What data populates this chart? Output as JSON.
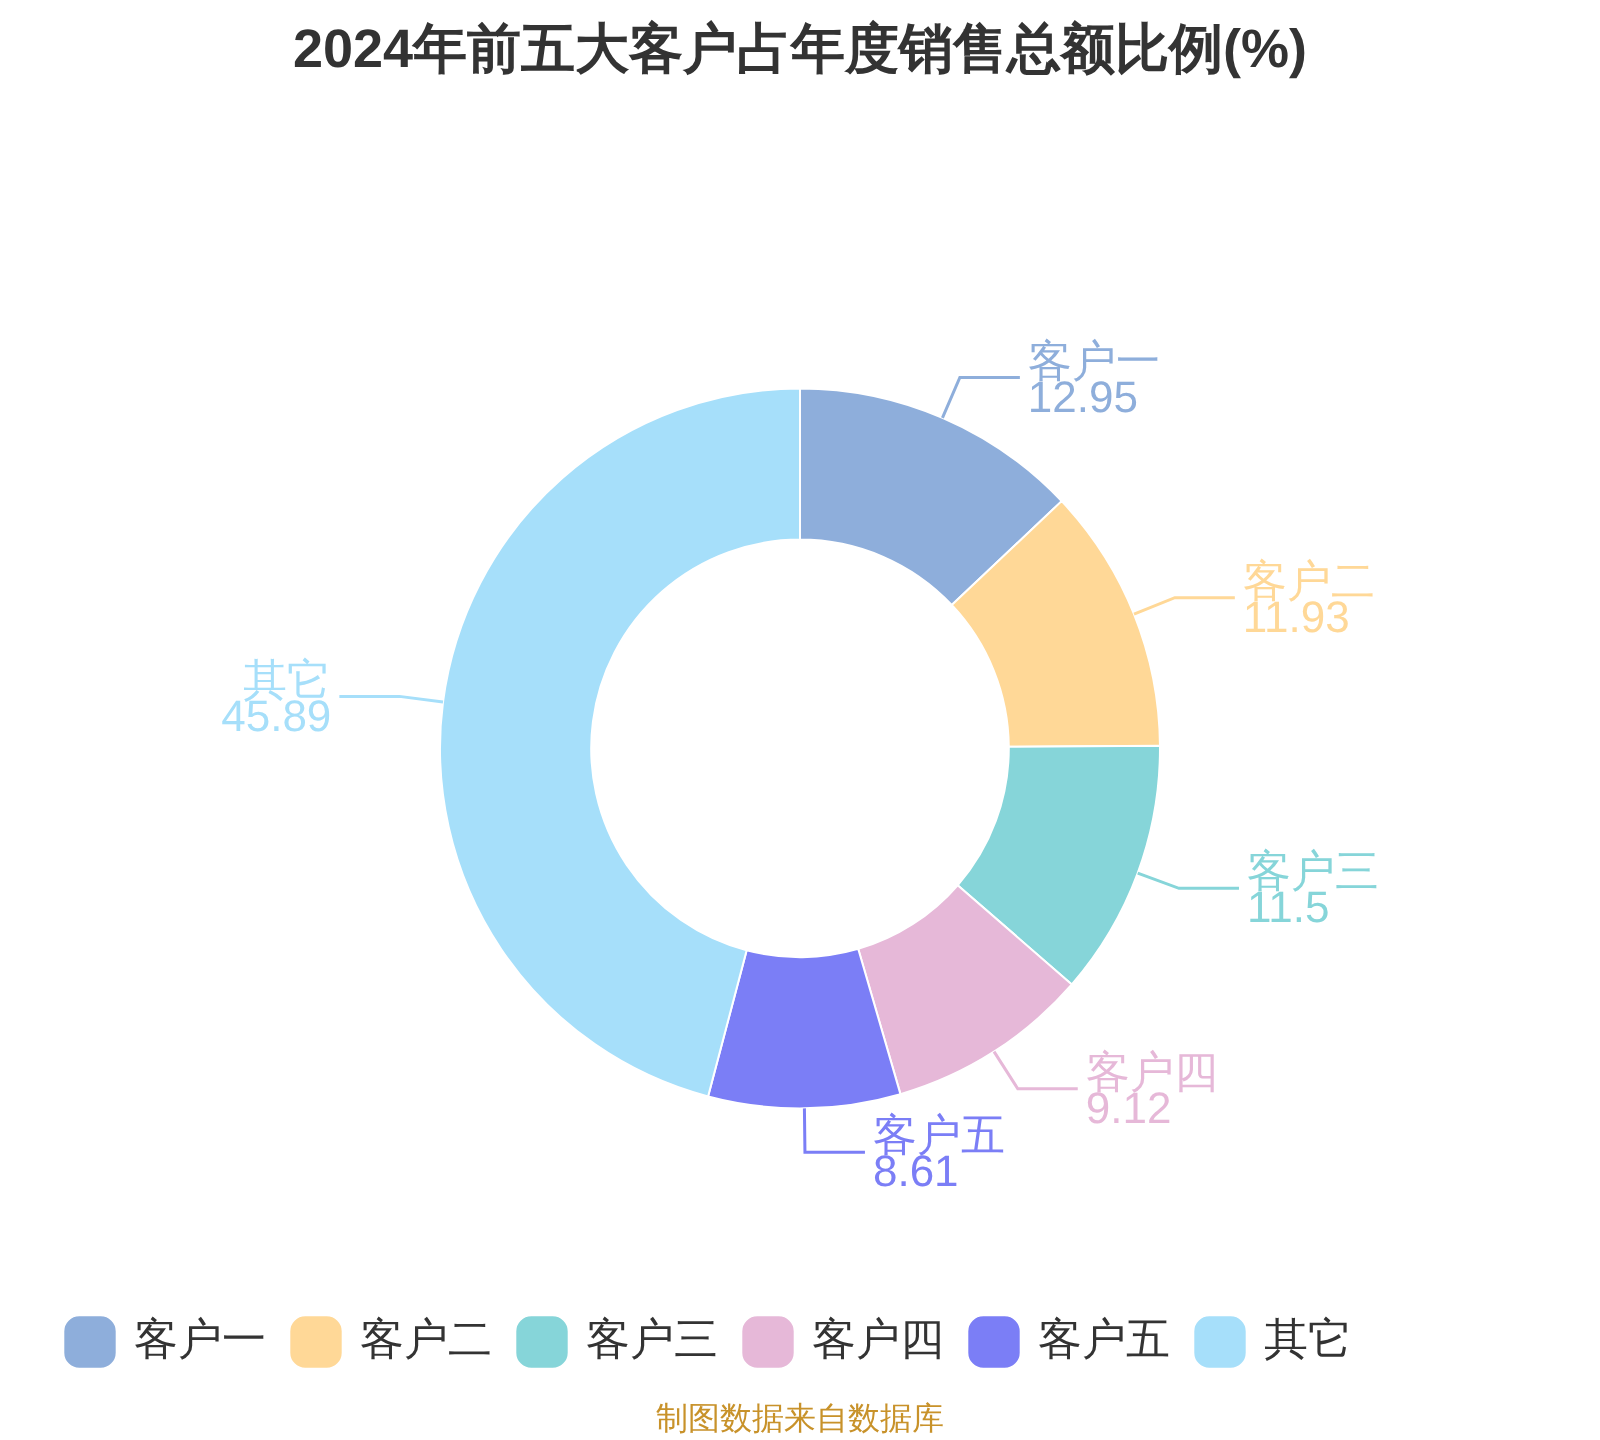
{
  "chart_data": {
    "type": "donut",
    "title": "2024年前五大客户占年度销售总额比例(%)",
    "categories": [
      "客户一",
      "客户二",
      "客户三",
      "客户四",
      "客户五",
      "其它"
    ],
    "values": [
      12.95,
      11.93,
      11.5,
      9.12,
      8.61,
      45.89
    ],
    "colors": [
      "#8eaedb",
      "#ffd897",
      "#86d5d9",
      "#e6b8d8",
      "#7b7ef6",
      "#a6dffa"
    ],
    "data_labels": true,
    "legend": "bottom",
    "annotations": [
      "制图数据来自数据库"
    ]
  }
}
